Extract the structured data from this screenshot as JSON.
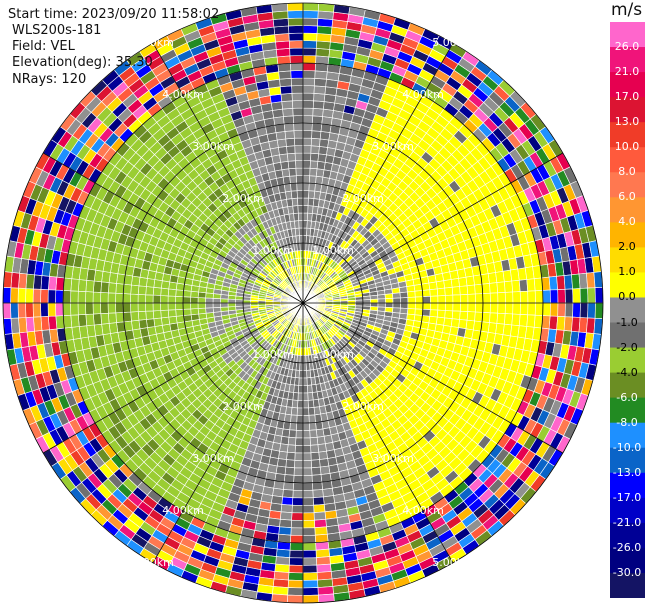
{
  "header": {
    "start_time": "Start time: 2023/09/20 11:58:02",
    "instrument": "WLS200s-181",
    "field": "Field: VEL",
    "elevation": "Elevation(deg): 35.30",
    "nrays": "NRays: 120"
  },
  "colorbar": {
    "unit": "m/s",
    "ticks": [
      "26.0",
      "21.0",
      "17.0",
      "13.0",
      "10.0",
      "8.0",
      "6.0",
      "4.0",
      "2.0",
      "1.0",
      "0.0",
      "-1.0",
      "-2.0",
      "-4.0",
      "-6.0",
      "-8.0",
      "-10.0",
      "-13.0",
      "-17.0",
      "-21.0",
      "-26.0",
      "-30.0"
    ],
    "colors": [
      "#ff66cc",
      "#f0147a",
      "#e60050",
      "#dc1432",
      "#f03c28",
      "#ff5a3c",
      "#ff7850",
      "#ff9632",
      "#ffb400",
      "#ffdc00",
      "#ffff00",
      "#909090",
      "#707070",
      "#9acd32",
      "#6b8e23",
      "#228b22",
      "#1e90ff",
      "#0a64c8",
      "#0000ff",
      "#0000c8",
      "#000096",
      "#000080",
      "#141464"
    ]
  },
  "chart_data": {
    "type": "heatmap",
    "title": "",
    "field": "VEL",
    "nrays": 120,
    "range_rings_km": [
      1.0,
      2.0,
      3.0,
      4.0,
      5.0
    ],
    "ring_labels": [
      "1.00km",
      "2.00km",
      "3.00km",
      "4.00km",
      "5.00km"
    ],
    "colorbar_label": "m/s",
    "vmin": -30.0,
    "vmax": 30.0,
    "inner_pattern": {
      "near_zero_gray_km": [
        0.0,
        4.0
      ],
      "yellow_positive_sector_deg": [
        20,
        160
      ],
      "green_negative_sector_deg": [
        200,
        340
      ],
      "noisy_outer_range_km": [
        4.0,
        5.0
      ]
    }
  }
}
